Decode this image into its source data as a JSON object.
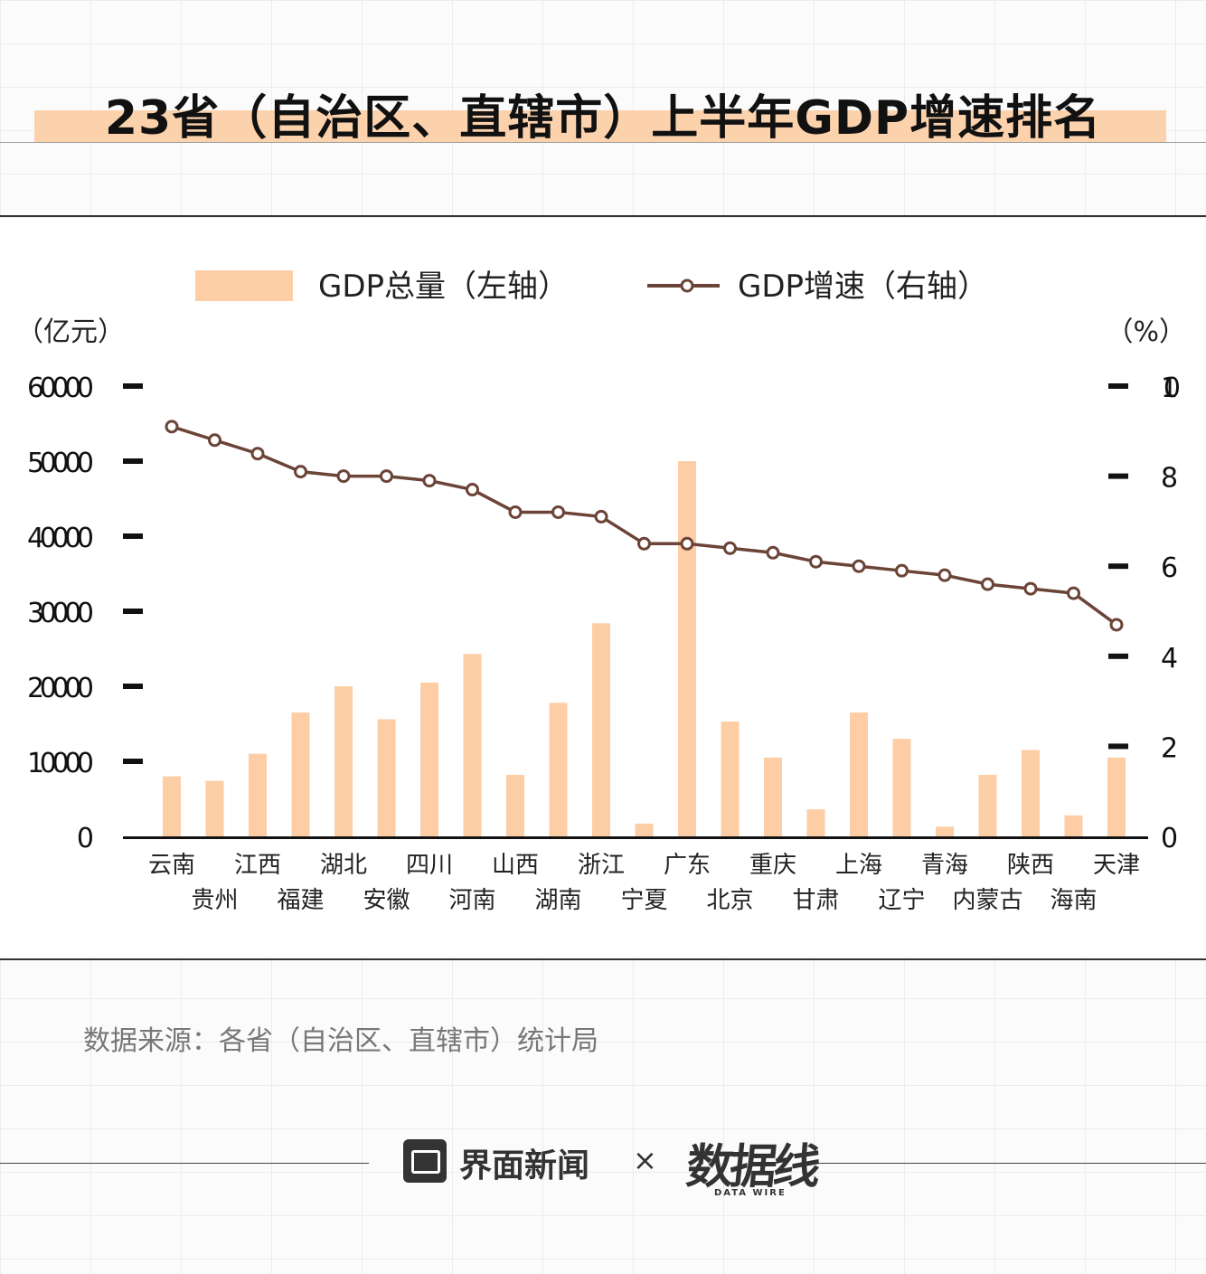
{
  "title": "23省（自治区、直辖市）上半年GDP增速排名",
  "source": "数据来源：各省（自治区、直辖市）统计局",
  "footer": {
    "brand": "界面新闻",
    "separator": "×",
    "partner": "数据线",
    "partner_sub": "DATA WIRE"
  },
  "colors": {
    "bar": "#fdcda6",
    "line": "#6b4437",
    "title_band": "#fcd2ad"
  },
  "chart_data": {
    "type": "bar",
    "legend": {
      "placement": "top-center",
      "bar_label": "GDP总量（左轴）",
      "line_label": "GDP增速（右轴）"
    },
    "left_unit": "（亿元）",
    "right_unit": "（%）",
    "ylim_left": [
      0,
      60000
    ],
    "ylim_right": [
      0,
      10
    ],
    "left_ticks": [
      "0",
      "10000",
      "20000",
      "30000",
      "40000",
      "50000",
      "60000"
    ],
    "right_ticks": [
      "0",
      "2",
      "4",
      "6",
      "8",
      "10"
    ],
    "categories": [
      "云南",
      "贵州",
      "江西",
      "福建",
      "湖北",
      "安徽",
      "四川",
      "河南",
      "山西",
      "湖南",
      "浙江",
      "宁夏",
      "广东",
      "北京",
      "重庆",
      "甘肃",
      "上海",
      "辽宁",
      "青海",
      "内蒙古",
      "陕西",
      "海南",
      "天津"
    ],
    "series": [
      {
        "name": "GDP总量（左轴）",
        "type": "bar",
        "axis": "left",
        "values": [
          8000,
          7400,
          11000,
          16500,
          20000,
          15600,
          20500,
          24300,
          8200,
          17800,
          28400,
          1700,
          50000,
          15300,
          10500,
          3600,
          16500,
          13000,
          1300,
          8200,
          11500,
          2800,
          10500
        ]
      },
      {
        "name": "GDP增速（右轴）",
        "type": "line",
        "axis": "right",
        "values": [
          9.1,
          8.8,
          8.5,
          8.1,
          8.0,
          8.0,
          7.9,
          7.7,
          7.2,
          7.2,
          7.1,
          6.5,
          6.5,
          6.4,
          6.3,
          6.1,
          6.0,
          5.9,
          5.8,
          5.6,
          5.5,
          5.4,
          4.7
        ]
      }
    ]
  }
}
